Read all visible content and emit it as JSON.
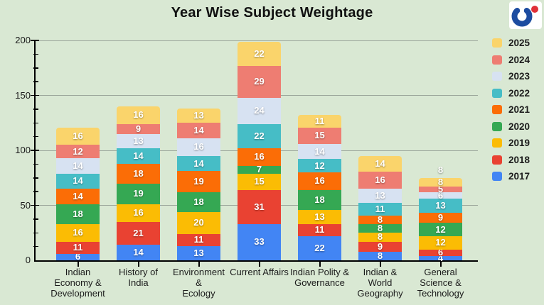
{
  "header": {
    "title": "Year Wise Subject Weightage"
  },
  "logo": {
    "crescent_color": "#1c4ca0",
    "dot_color": "#e03038",
    "bg": "#ffffff"
  },
  "chart_data": {
    "type": "bar",
    "stacked": true,
    "title": "Year Wise Subject Weightage",
    "background": "#d9e8d3",
    "gridline_color": "#9ba69b",
    "axis_color": "#000000",
    "bar_label_color": "#ffffff",
    "categories": [
      "Indian Economy & Development",
      "History of India",
      "Environment & Ecology",
      "Current Affairs",
      "Indian Polity & Governance",
      "Indian & World Geography",
      "General Science & Technology"
    ],
    "category_label_lines": [
      [
        "Indian",
        "Economy &",
        "Development"
      ],
      [
        "History of",
        "India"
      ],
      [
        "Environment &",
        "Ecology"
      ],
      [
        "Current Affairs"
      ],
      [
        "Indian Polity &",
        "Governance"
      ],
      [
        "Indian & World",
        "Geography"
      ],
      [
        "General",
        "Science &",
        "Technology"
      ]
    ],
    "series": [
      {
        "name": "2017",
        "color": "#4285f4",
        "values": [
          6,
          14,
          13,
          33,
          22,
          8,
          4
        ]
      },
      {
        "name": "2018",
        "color": "#e94232",
        "values": [
          11,
          21,
          11,
          31,
          11,
          9,
          6
        ]
      },
      {
        "name": "2019",
        "color": "#fbbc04",
        "values": [
          16,
          16,
          20,
          15,
          13,
          8,
          12
        ]
      },
      {
        "name": "2020",
        "color": "#35a853",
        "values": [
          18,
          19,
          18,
          7,
          18,
          8,
          12
        ]
      },
      {
        "name": "2021",
        "color": "#fb6d06",
        "values": [
          14,
          18,
          19,
          16,
          16,
          8,
          9
        ]
      },
      {
        "name": "2022",
        "color": "#46bdc6",
        "values": [
          14,
          14,
          14,
          22,
          12,
          11,
          13
        ]
      },
      {
        "name": "2023",
        "color": "#d7e2f2",
        "values": [
          14,
          13,
          16,
          24,
          14,
          13,
          6
        ]
      },
      {
        "name": "2024",
        "color": "#ee7d72",
        "values": [
          12,
          9,
          14,
          29,
          15,
          16,
          5
        ]
      },
      {
        "name": "2025",
        "color": "#fad46b",
        "values": [
          16,
          16,
          13,
          22,
          11,
          14,
          8
        ]
      }
    ],
    "totals": [
      121,
      140,
      138,
      199,
      132,
      95,
      75
    ],
    "ylim": [
      0,
      200
    ],
    "yticks": [
      0,
      50,
      100,
      150,
      200
    ],
    "minor_tick_step": 12.5,
    "grid": true,
    "legend_position": "right",
    "legend_order": [
      "2025",
      "2024",
      "2023",
      "2022",
      "2021",
      "2020",
      "2019",
      "2018",
      "2017"
    ]
  }
}
